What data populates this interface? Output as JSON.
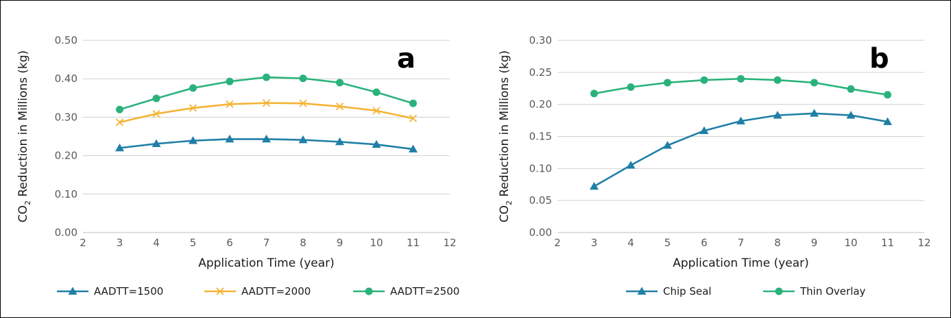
{
  "chart_data": [
    {
      "type": "line",
      "panel_label": "a",
      "xlabel": "Application Time (year)",
      "ylabel_parts": [
        "CO",
        "2",
        " Reduction in Millions (kg)"
      ],
      "xlim": [
        2,
        12
      ],
      "ylim": [
        0,
        0.5
      ],
      "xticks": [
        "2",
        "3",
        "4",
        "5",
        "6",
        "7",
        "8",
        "9",
        "10",
        "11",
        "12"
      ],
      "yticks": [
        "0.00",
        "0.10",
        "0.20",
        "0.30",
        "0.40",
        "0.50"
      ],
      "x": [
        3,
        4,
        5,
        6,
        7,
        8,
        9,
        10,
        11
      ],
      "grid": true,
      "legend_position": "bottom",
      "series": [
        {
          "name": "AADTT=1500",
          "marker": "triangle",
          "color": "#1f7fa6",
          "values": [
            0.22,
            0.231,
            0.239,
            0.243,
            0.243,
            0.241,
            0.236,
            0.229,
            0.217
          ]
        },
        {
          "name": "AADTT=2000",
          "marker": "x",
          "color": "#f5b335",
          "values": [
            0.287,
            0.309,
            0.324,
            0.334,
            0.337,
            0.336,
            0.328,
            0.317,
            0.297
          ]
        },
        {
          "name": "AADTT=2500",
          "marker": "circle",
          "color": "#2ab27b",
          "values": [
            0.32,
            0.349,
            0.376,
            0.393,
            0.404,
            0.401,
            0.39,
            0.365,
            0.336
          ]
        }
      ]
    },
    {
      "type": "line",
      "panel_label": "b",
      "xlabel": "Application Time (year)",
      "ylabel_parts": [
        "CO",
        "2",
        " Reduction in Millions (kg)"
      ],
      "xlim": [
        2,
        12
      ],
      "ylim": [
        0,
        0.3
      ],
      "xticks": [
        "2",
        "3",
        "4",
        "5",
        "6",
        "7",
        "8",
        "9",
        "10",
        "11",
        "12"
      ],
      "yticks": [
        "0.00",
        "0.05",
        "0.10",
        "0.15",
        "0.20",
        "0.25",
        "0.30"
      ],
      "x": [
        3,
        4,
        5,
        6,
        7,
        8,
        9,
        10,
        11
      ],
      "grid": true,
      "legend_position": "bottom",
      "series": [
        {
          "name": "Chip Seal",
          "marker": "triangle",
          "color": "#1f7fa6",
          "values": [
            0.072,
            0.105,
            0.136,
            0.159,
            0.174,
            0.183,
            0.186,
            0.183,
            0.173
          ]
        },
        {
          "name": "Thin Overlay",
          "marker": "circle",
          "color": "#2ab27b",
          "values": [
            0.217,
            0.227,
            0.234,
            0.238,
            0.24,
            0.238,
            0.234,
            0.224,
            0.215
          ]
        }
      ]
    }
  ]
}
